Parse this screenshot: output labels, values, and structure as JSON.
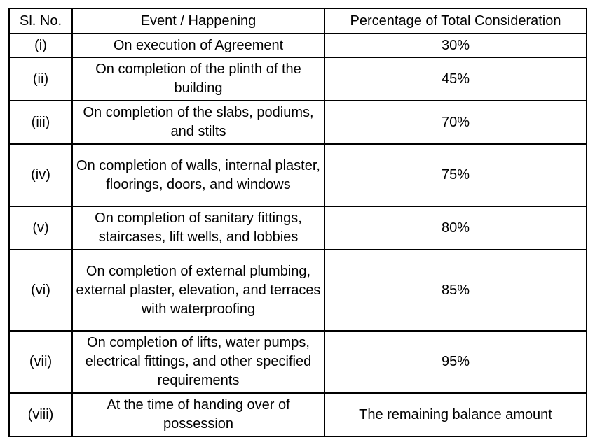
{
  "table": {
    "headers": {
      "sl_no": "Sl. No.",
      "event": "Event / Happening",
      "percentage": "Percentage of Total Consideration"
    },
    "rows": [
      {
        "sl": "(i)",
        "event": "On execution of Agreement",
        "pct": "30%"
      },
      {
        "sl": "(ii)",
        "event": "On completion of the plinth of the building",
        "pct": "45%"
      },
      {
        "sl": "(iii)",
        "event": "On completion of the slabs, podiums, and stilts",
        "pct": "70%"
      },
      {
        "sl": "(iv)",
        "event": "On completion of walls, internal plaster, floorings, doors, and windows",
        "pct": "75%"
      },
      {
        "sl": "(v)",
        "event": "On completion of sanitary fittings, staircases, lift wells, and lobbies",
        "pct": "80%"
      },
      {
        "sl": "(vi)",
        "event": "On completion of external plumbing, external plaster, elevation, and terraces with waterproofing",
        "pct": "85%"
      },
      {
        "sl": "(vii)",
        "event": "On completion of lifts, water pumps, electrical fittings, and other specified requirements",
        "pct": "95%"
      },
      {
        "sl": "(viii)",
        "event": "At the time of handing over of possession",
        "pct": "The remaining balance amount"
      }
    ]
  }
}
